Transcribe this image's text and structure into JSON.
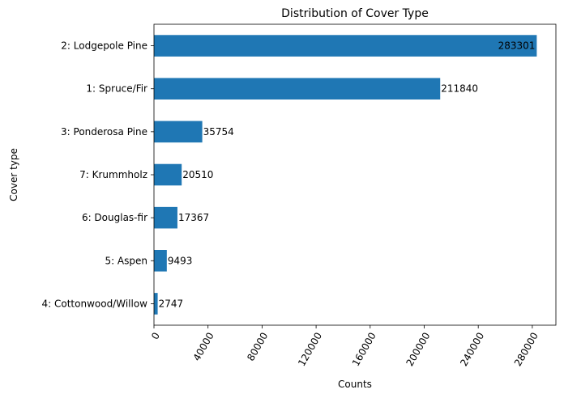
{
  "chart_data": {
    "type": "bar",
    "orientation": "horizontal",
    "title": "Distribution of Cover Type",
    "xlabel": "Counts",
    "ylabel": "Cover type",
    "categories": [
      "2: Lodgepole Pine",
      "1: Spruce/Fir",
      "3: Ponderosa Pine",
      "7: Krummholz",
      "6: Douglas-fir",
      "5: Aspen",
      "4: Cottonwood/Willow"
    ],
    "values": [
      283301,
      211840,
      35754,
      20510,
      17367,
      9493,
      2747
    ],
    "data_labels": [
      "283301",
      "211840",
      "35754",
      "20510",
      "17367",
      "9493",
      "2747"
    ],
    "xlim": [
      0,
      297466
    ],
    "xticks": [
      0,
      40000,
      80000,
      120000,
      160000,
      200000,
      240000,
      280000
    ],
    "xtick_labels": [
      "0",
      "40000",
      "80000",
      "120000",
      "160000",
      "200000",
      "240000",
      "280000"
    ],
    "bar_color": "#1f77b4",
    "grid": false,
    "legend": "none"
  }
}
